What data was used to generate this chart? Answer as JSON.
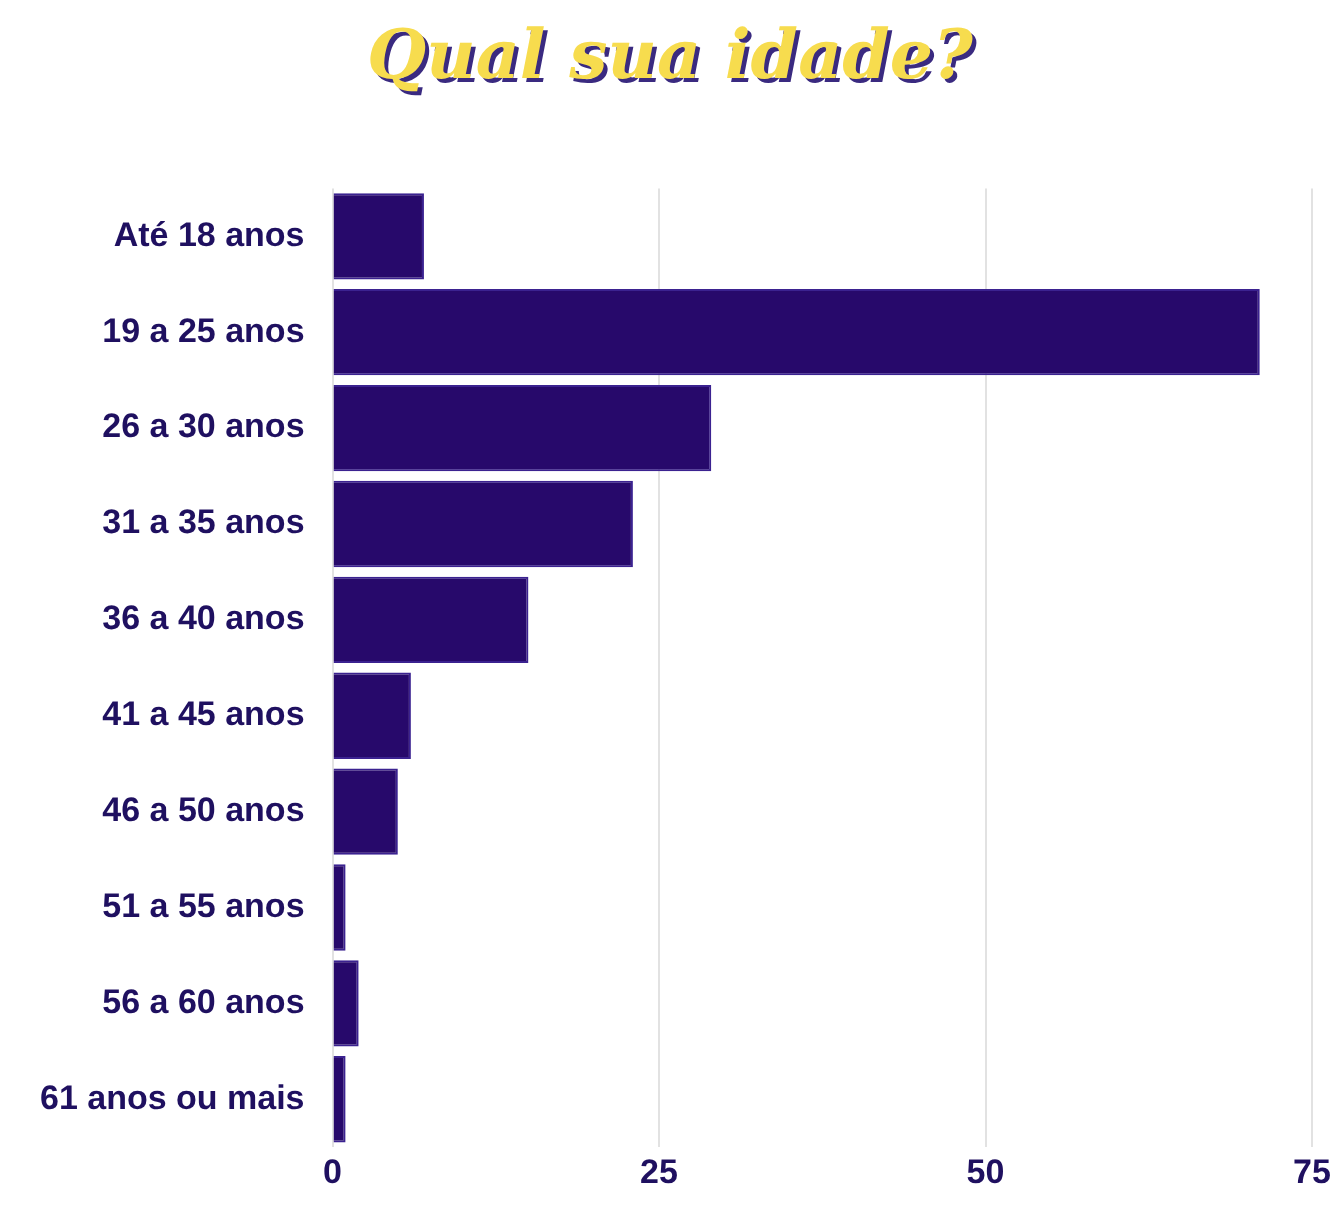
{
  "chart_data": {
    "type": "bar",
    "orientation": "horizontal",
    "title": "Qual sua idade?",
    "categories": [
      "Até 18 anos",
      "19 a 25 anos",
      "26 a 30 anos",
      "31 a 35 anos",
      "36 a 40 anos",
      "41 a 45 anos",
      "46 a 50 anos",
      "51 a 55 anos",
      "56 a 60 anos",
      "61 anos ou mais"
    ],
    "values": [
      7,
      71,
      29,
      23,
      15,
      6,
      5,
      1,
      2,
      1
    ],
    "color": "#27096b",
    "xlim": [
      0,
      75
    ],
    "xticks": [
      0,
      25,
      50,
      75
    ],
    "grid": "x",
    "legend": false
  }
}
